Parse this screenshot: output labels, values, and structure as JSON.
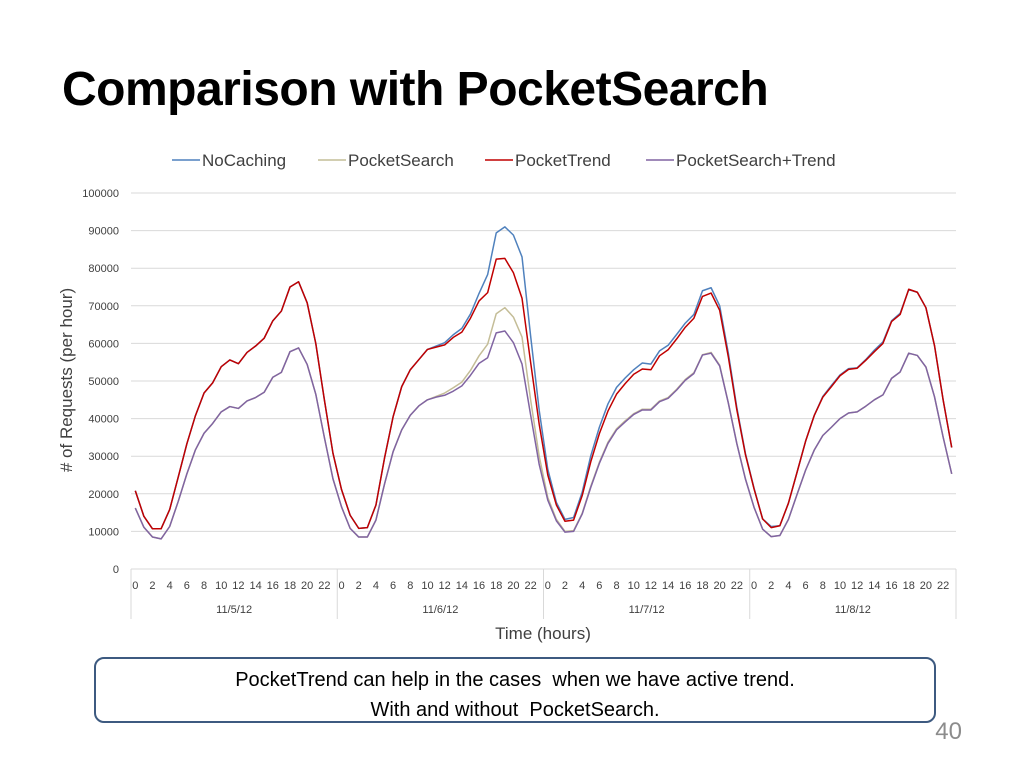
{
  "slide": {
    "title": "Comparison with PocketSearch",
    "callout_line1": "PocketTrend can help in the cases  when we have active trend.",
    "callout_line2": "With and without  PocketSearch.",
    "page_number": "40"
  },
  "chart_data": {
    "type": "line",
    "xlabel": "Time (hours)",
    "ylabel": "# of Requests (per hour)",
    "ylim": [
      0,
      100000
    ],
    "yticks": [
      0,
      10000,
      20000,
      30000,
      40000,
      50000,
      60000,
      70000,
      80000,
      90000,
      100000
    ],
    "grid": true,
    "legend_position": "top",
    "hour_tick_labels": [
      "0",
      "2",
      "4",
      "6",
      "8",
      "10",
      "12",
      "14",
      "16",
      "18",
      "20",
      "22"
    ],
    "days": [
      "11/5/12",
      "11/6/12",
      "11/7/12",
      "11/8/12"
    ],
    "series": [
      {
        "name": "NoCaching",
        "color": "#4f81bd",
        "values": [
          20800,
          14000,
          10700,
          10700,
          15800,
          24500,
          33300,
          40800,
          46800,
          49500,
          53800,
          55600,
          54600,
          57600,
          59300,
          61400,
          66000,
          68600,
          75000,
          76400,
          70800,
          60000,
          45000,
          30800,
          21100,
          14300,
          10800,
          11000,
          17000,
          29500,
          40500,
          48500,
          53000,
          55700,
          58400,
          59300,
          60200,
          62300,
          64000,
          67800,
          73300,
          78300,
          89400,
          91000,
          88800,
          83000,
          62000,
          42200,
          26500,
          17700,
          13200,
          13700,
          20400,
          30100,
          37700,
          43900,
          48300,
          50800,
          53000,
          54800,
          54500,
          58000,
          59500,
          62400,
          65400,
          67700,
          74000,
          74800,
          70000,
          57500,
          42900,
          30700,
          21500,
          13300,
          11300,
          11500,
          17500,
          25700,
          34000,
          40800,
          45900,
          48800,
          51600,
          53300,
          53500,
          55700,
          58200,
          60400,
          66000,
          68000,
          74300,
          73600,
          69500,
          59400,
          45000,
          32300
        ]
      },
      {
        "name": "PocketSearch",
        "color": "#c4bd97",
        "values": [
          16200,
          11100,
          8500,
          8000,
          11300,
          18000,
          25300,
          31700,
          36100,
          38700,
          41800,
          43200,
          42700,
          44700,
          45600,
          47000,
          51000,
          52300,
          57800,
          58800,
          54400,
          46500,
          35000,
          24000,
          16500,
          10800,
          8500,
          8500,
          13000,
          22600,
          31200,
          37000,
          40900,
          43400,
          45000,
          45900,
          46800,
          48200,
          49700,
          52800,
          56700,
          59800,
          67900,
          69500,
          67000,
          61700,
          45000,
          30000,
          19000,
          13200,
          10000,
          10200,
          14800,
          22000,
          28400,
          33700,
          37300,
          39400,
          41300,
          42500,
          42500,
          44700,
          45600,
          47800,
          50400,
          52200,
          57000,
          57600,
          54200,
          44300,
          33400,
          24000,
          16400,
          10600,
          8600,
          8900,
          13200,
          19800,
          26300,
          31600,
          35500,
          37700,
          40000,
          41500,
          41800,
          43300,
          45000,
          46300,
          50700,
          52400,
          57400,
          56800,
          53700,
          45800,
          35100,
          25300
        ]
      },
      {
        "name": "PocketTrend",
        "color": "#c00000",
        "values": [
          20800,
          14000,
          10700,
          10700,
          15800,
          24500,
          33300,
          40800,
          46800,
          49500,
          53800,
          55600,
          54600,
          57600,
          59300,
          61400,
          66000,
          68600,
          75000,
          76400,
          70800,
          60000,
          45000,
          30800,
          21100,
          14300,
          10800,
          11000,
          17000,
          29500,
          40500,
          48500,
          53000,
          55700,
          58400,
          59000,
          59600,
          61600,
          63000,
          66700,
          71300,
          73500,
          82400,
          82600,
          78800,
          72000,
          55000,
          38500,
          25000,
          17000,
          12700,
          13000,
          19500,
          28500,
          36000,
          42000,
          46500,
          49300,
          51800,
          53200,
          53000,
          56700,
          58300,
          61200,
          64300,
          66700,
          72500,
          73400,
          68800,
          56500,
          42300,
          30400,
          21300,
          13300,
          11000,
          11500,
          17500,
          25700,
          34000,
          40800,
          45700,
          48500,
          51400,
          53100,
          53400,
          55500,
          57800,
          60000,
          65800,
          67700,
          74400,
          73600,
          69500,
          59400,
          45000,
          32300
        ]
      },
      {
        "name": "PocketSearch+Trend",
        "color": "#8064a2",
        "values": [
          16200,
          11100,
          8500,
          8000,
          11300,
          18000,
          25300,
          31700,
          36100,
          38700,
          41800,
          43200,
          42700,
          44700,
          45600,
          47000,
          51000,
          52300,
          57800,
          58800,
          54400,
          46500,
          35000,
          24000,
          16500,
          10800,
          8500,
          8500,
          13000,
          22600,
          31200,
          37000,
          40900,
          43400,
          45000,
          45700,
          46200,
          47300,
          48700,
          51500,
          54700,
          56200,
          62800,
          63300,
          60200,
          54500,
          41000,
          27800,
          18300,
          12800,
          9800,
          10000,
          14600,
          21700,
          28100,
          33400,
          37000,
          39100,
          41100,
          42300,
          42300,
          44500,
          45400,
          47600,
          50200,
          52000,
          56900,
          57400,
          54000,
          44200,
          33300,
          23900,
          16400,
          10600,
          8600,
          8900,
          13200,
          19800,
          26300,
          31600,
          35500,
          37700,
          40000,
          41500,
          41800,
          43300,
          45000,
          46300,
          50700,
          52400,
          57400,
          56800,
          53700,
          45800,
          35100,
          25300
        ]
      }
    ]
  }
}
